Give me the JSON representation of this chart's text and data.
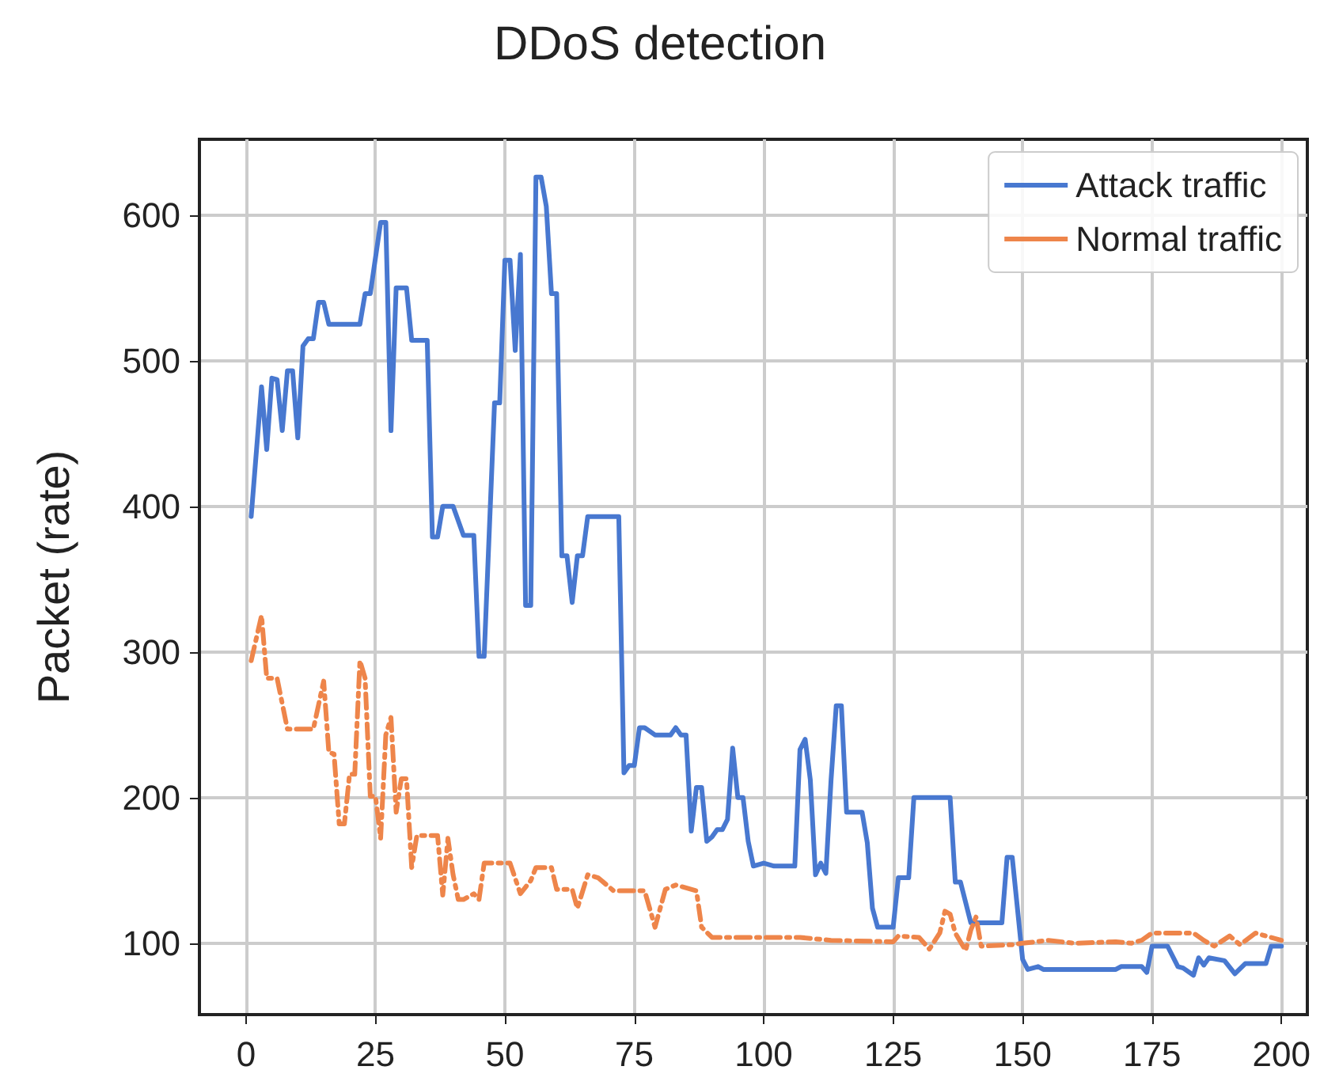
{
  "chart_data": {
    "type": "line",
    "title": "DDoS detection",
    "ylabel": "Packet (rate)",
    "xlim": [
      -9,
      205
    ],
    "ylim": [
      51,
      652
    ],
    "xticks": [
      0,
      25,
      50,
      75,
      100,
      125,
      150,
      175,
      200
    ],
    "yticks": [
      100,
      200,
      300,
      400,
      500,
      600
    ],
    "grid": true,
    "legend": "top right",
    "series": [
      {
        "name": "Attack traffic",
        "color": "#4878d0",
        "line_style": "solid",
        "x": [
          1,
          3,
          4,
          5,
          6,
          7,
          8,
          9,
          10,
          11,
          12,
          13,
          14,
          15,
          16,
          18,
          22,
          23,
          24,
          26,
          27,
          28,
          29,
          31,
          32,
          35,
          36,
          37,
          38,
          40,
          42,
          44,
          45,
          46,
          48,
          49,
          50,
          51,
          52,
          53,
          54,
          55,
          56,
          57,
          58,
          59,
          60,
          61,
          62,
          63,
          64,
          65,
          66,
          72,
          73,
          74,
          75,
          76,
          77,
          79,
          82,
          83,
          84,
          85,
          86,
          87,
          88,
          89,
          90,
          91,
          92,
          93,
          94,
          95,
          96,
          97,
          98,
          100,
          102,
          106,
          107,
          108,
          109,
          110,
          111,
          112,
          113,
          114,
          115,
          116,
          117,
          119,
          120,
          121,
          122,
          125,
          126,
          128,
          129,
          136,
          137,
          138,
          140,
          146,
          147,
          148,
          150,
          151,
          153,
          154,
          168,
          169,
          173,
          174,
          175,
          178,
          180,
          181,
          183,
          184,
          185,
          186,
          189,
          191,
          193,
          197,
          198,
          200
        ],
        "values": [
          393,
          482,
          439,
          488,
          487,
          452,
          493,
          493,
          447,
          510,
          515,
          515,
          540,
          540,
          525,
          525,
          525,
          546,
          546,
          595,
          595,
          452,
          550,
          550,
          514,
          514,
          379,
          379,
          400,
          400,
          380,
          380,
          297,
          297,
          471,
          471,
          569,
          569,
          507,
          573,
          332,
          332,
          626,
          626,
          606,
          546,
          546,
          366,
          366,
          334,
          366,
          366,
          393,
          393,
          217,
          222,
          222,
          248,
          248,
          243,
          243,
          248,
          243,
          243,
          177,
          207,
          207,
          170,
          173,
          178,
          178,
          185,
          234,
          200,
          200,
          170,
          153,
          155,
          153,
          153,
          233,
          240,
          212,
          147,
          155,
          148,
          212,
          263,
          263,
          190,
          190,
          190,
          169,
          124,
          111,
          111,
          145,
          145,
          200,
          200,
          142,
          142,
          114,
          114,
          159,
          159,
          89,
          82,
          84,
          82,
          82,
          84,
          84,
          80,
          98,
          98,
          84,
          83,
          78,
          90,
          85,
          90,
          88,
          79,
          86,
          86,
          98,
          98
        ]
      },
      {
        "name": "Normal traffic",
        "color": "#ee854a",
        "line_style": "dashed",
        "x": [
          1,
          3,
          4,
          6,
          8,
          13,
          15,
          16,
          17,
          18,
          19,
          20,
          21,
          22,
          23,
          24,
          25,
          26,
          27,
          28,
          29,
          30,
          31,
          32,
          33,
          37,
          38,
          39,
          40,
          41,
          42,
          44,
          45,
          46,
          51,
          53,
          55,
          56,
          59,
          60,
          63,
          64,
          66,
          68,
          71,
          75,
          77,
          79,
          81,
          83,
          87,
          88,
          90,
          107,
          113,
          125,
          126,
          130,
          132,
          134,
          135,
          136,
          137,
          139,
          140,
          141,
          142,
          148,
          150,
          155,
          160,
          168,
          171,
          173,
          175,
          178,
          183,
          185,
          187,
          190,
          192,
          195,
          198,
          200
        ],
        "values": [
          294,
          325,
          282,
          282,
          247,
          247,
          280,
          231,
          230,
          182,
          182,
          216,
          216,
          294,
          282,
          201,
          201,
          172,
          243,
          255,
          190,
          213,
          213,
          152,
          174,
          174,
          133,
          172,
          147,
          130,
          130,
          134,
          130,
          155,
          155,
          134,
          143,
          152,
          152,
          137,
          137,
          124,
          147,
          145,
          136,
          136,
          136,
          111,
          137,
          140,
          136,
          111,
          104,
          104,
          102,
          101,
          105,
          104,
          96,
          107,
          122,
          120,
          107,
          95,
          109,
          118,
          98,
          99,
          100,
          102,
          100,
          101,
          100,
          102,
          107,
          107,
          107,
          102,
          98,
          105,
          99,
          107,
          104,
          102
        ]
      }
    ]
  }
}
